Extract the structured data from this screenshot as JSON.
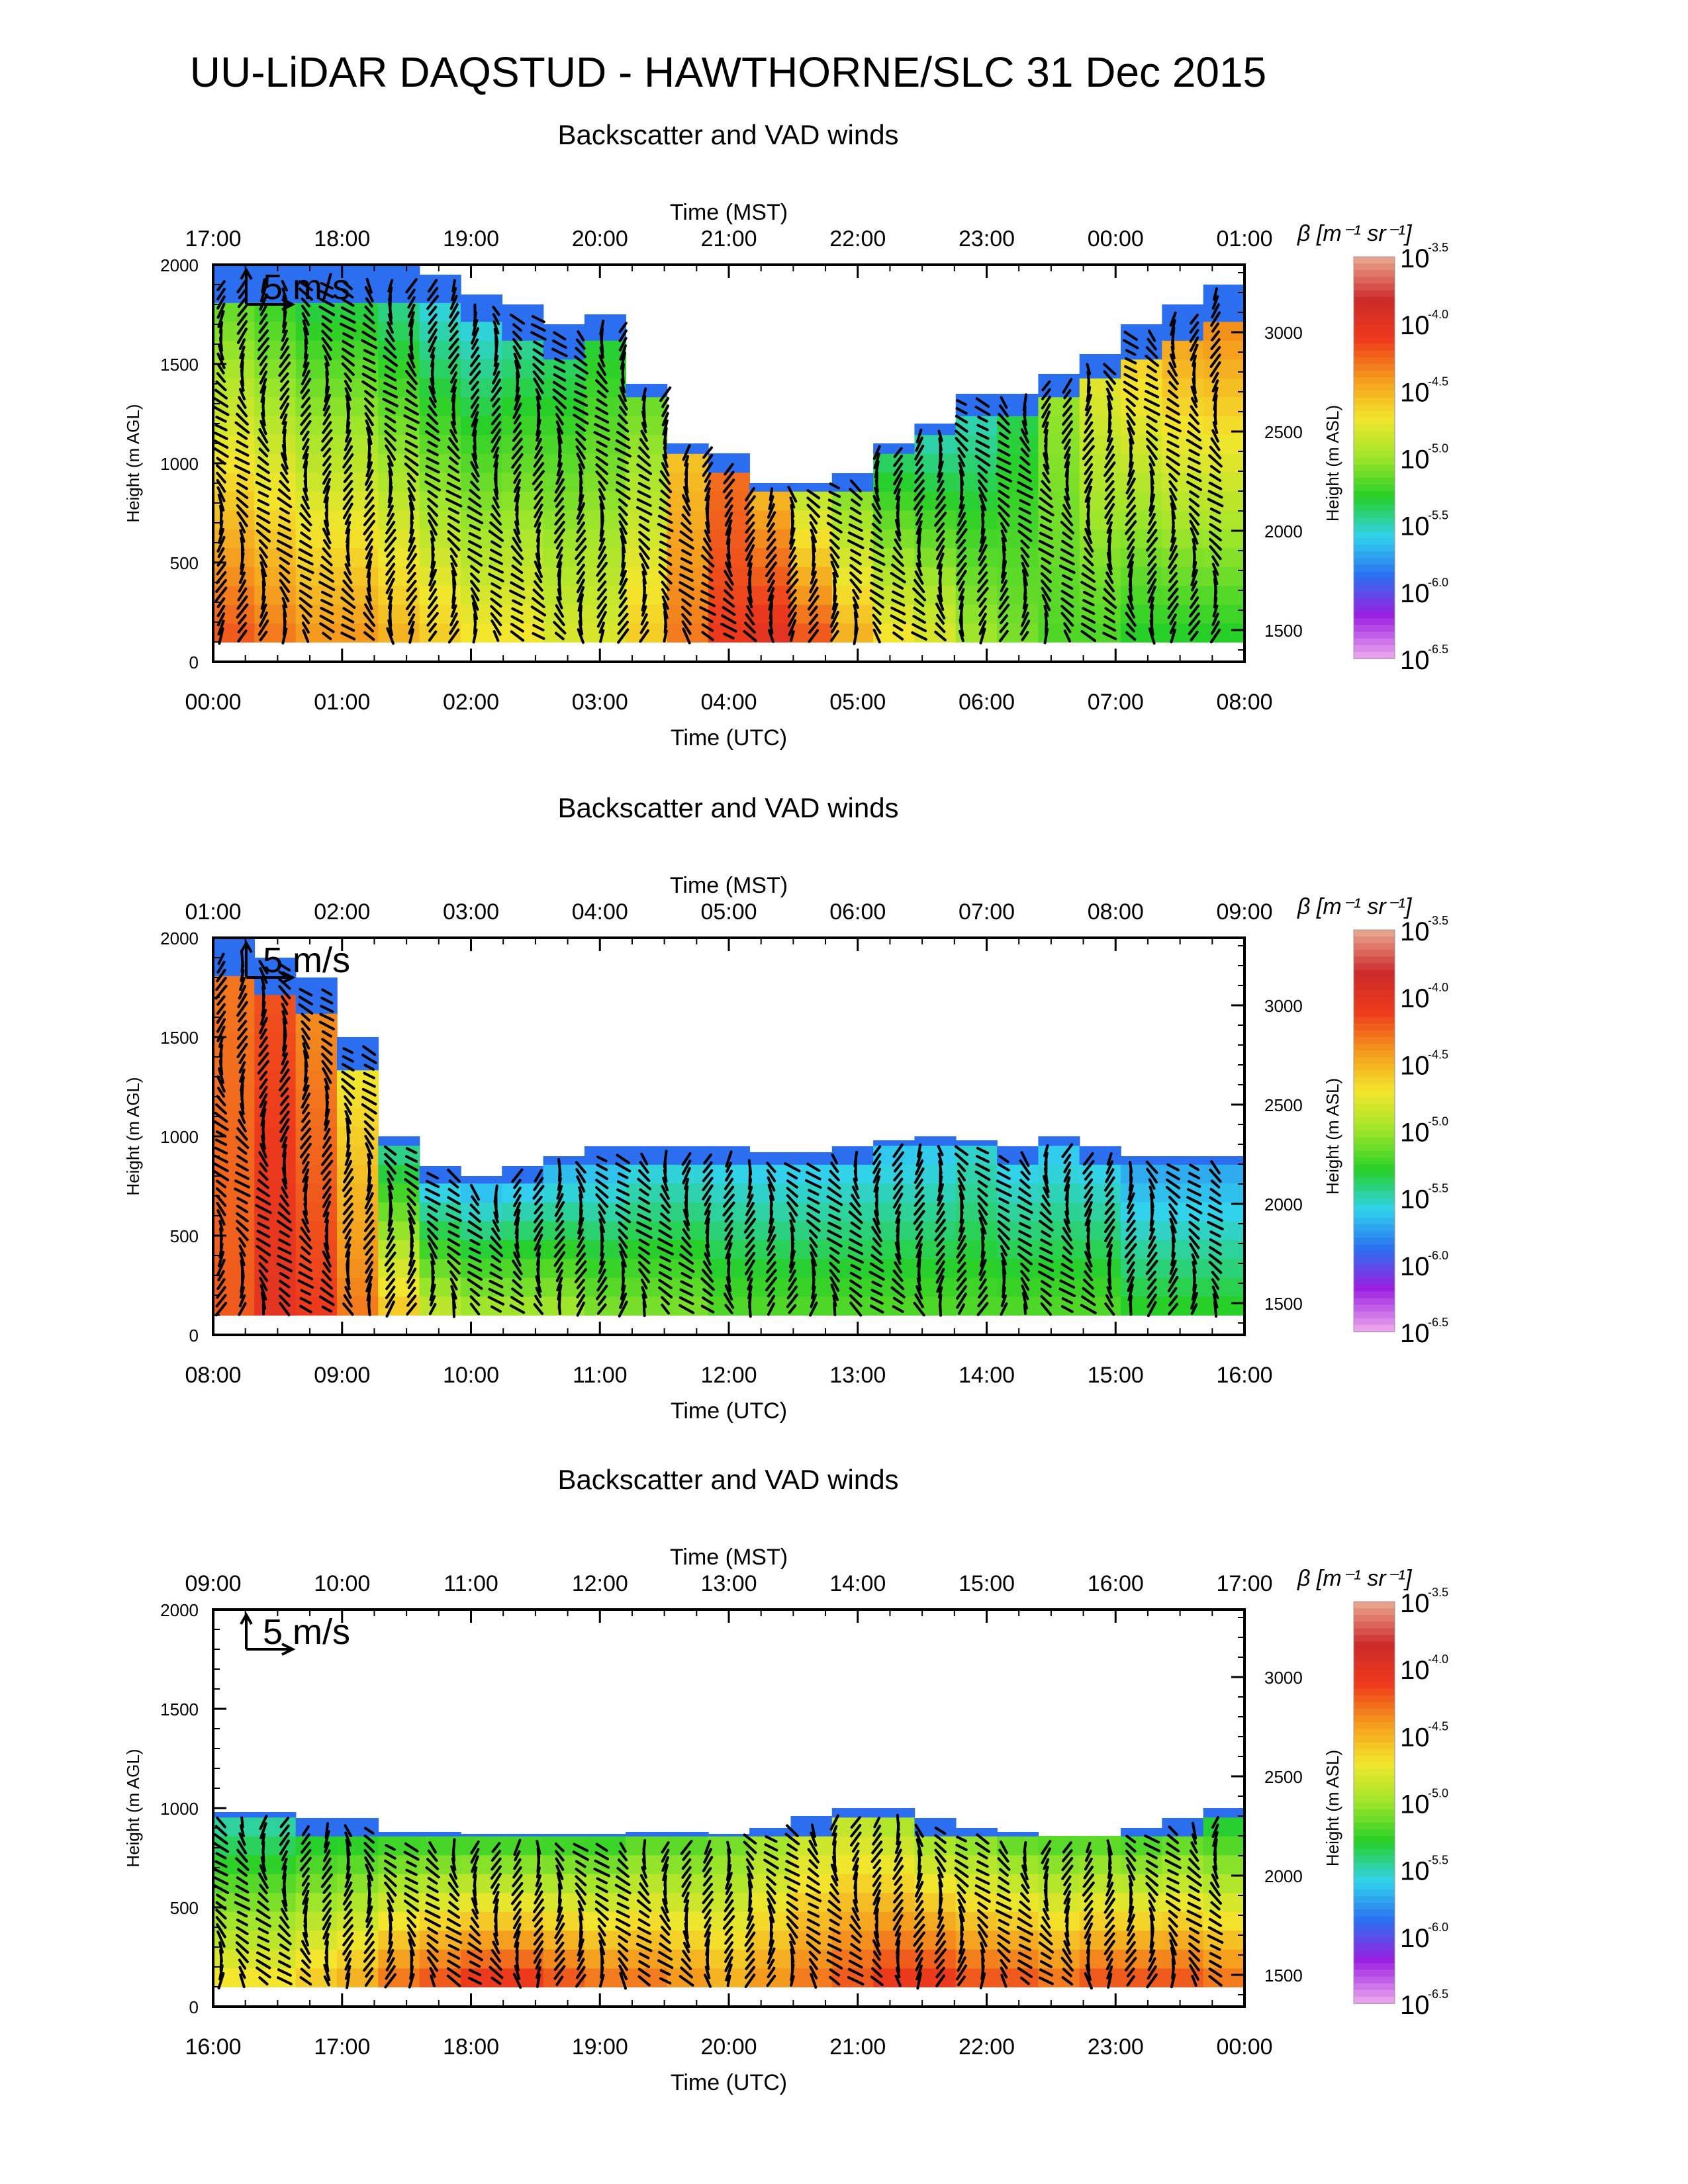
{
  "title": "UU-LiDAR DAQSTUD - HAWTHORNE/SLC 31 Dec 2015",
  "colors": {
    "colormap": [
      "#e9a0ee",
      "#9b1fe0",
      "#2b6ff0",
      "#31d3ee",
      "#27d027",
      "#9fe62a",
      "#f4e62c",
      "#f59a1d",
      "#ee3a1c",
      "#cc2a2a",
      "#e8a08a"
    ]
  },
  "chart_data": [
    {
      "type": "heatmap",
      "title": "Backscatter and VAD winds",
      "top_axis_label": "Time (MST)",
      "top_ticks": [
        "17:00",
        "18:00",
        "19:00",
        "20:00",
        "21:00",
        "22:00",
        "23:00",
        "00:00",
        "01:00"
      ],
      "xlabel": "Time (UTC)",
      "x_ticks": [
        "00:00",
        "01:00",
        "02:00",
        "03:00",
        "04:00",
        "05:00",
        "06:00",
        "07:00",
        "08:00"
      ],
      "ylabel": "Height (m AGL)",
      "y_ticks": [
        "0",
        "500",
        "1000",
        "1500",
        "2000"
      ],
      "ylim": [
        0,
        2000
      ],
      "y2label": "Height (m ASL)",
      "y2_ticks": [
        "1500",
        "2000",
        "2500",
        "3000"
      ],
      "y2_values": [
        1500,
        2000,
        2500,
        3000
      ],
      "asl_offset": 1340,
      "wind_scale_label": "5 m/s",
      "colorbar": {
        "label": "β [m⁻¹ sr⁻¹]",
        "ticks": [
          "-3.5",
          "-4.0",
          "-4.5",
          "-5.0",
          "-5.5",
          "-6.0",
          "-6.5"
        ],
        "range_log10": [
          -6.5,
          -3.5
        ]
      },
      "layer_top_m": [
        2000,
        2000,
        2000,
        2000,
        2000,
        1950,
        1850,
        1800,
        1700,
        1750,
        1400,
        1100,
        1050,
        900,
        900,
        950,
        1100,
        1200,
        1350,
        1350,
        1450,
        1550,
        1700,
        1800,
        1900
      ],
      "surface_log_beta": [
        -4.2,
        -4.3,
        -4.4,
        -4.4,
        -4.5,
        -4.6,
        -4.7,
        -4.7,
        -4.8,
        -4.8,
        -4.6,
        -4.3,
        -4.1,
        -4.0,
        -4.2,
        -4.5,
        -4.7,
        -4.8,
        -5.0,
        -5.1,
        -5.2,
        -5.2,
        -5.3,
        -5.3,
        -5.3
      ],
      "upper_log_beta": [
        -5.3,
        -5.4,
        -5.5,
        -5.5,
        -5.6,
        -5.7,
        -5.7,
        -5.6,
        -5.5,
        -5.4,
        -5.2,
        -4.6,
        -4.3,
        -4.6,
        -5.0,
        -5.2,
        -5.5,
        -5.6,
        -5.6,
        -5.4,
        -5.0,
        -4.7,
        -4.5,
        -4.3,
        -4.2
      ]
    },
    {
      "type": "heatmap",
      "title": "Backscatter and VAD winds",
      "top_axis_label": "Time (MST)",
      "top_ticks": [
        "01:00",
        "02:00",
        "03:00",
        "04:00",
        "05:00",
        "06:00",
        "07:00",
        "08:00",
        "09:00"
      ],
      "xlabel": "Time (UTC)",
      "x_ticks": [
        "08:00",
        "09:00",
        "10:00",
        "11:00",
        "12:00",
        "13:00",
        "14:00",
        "15:00",
        "16:00"
      ],
      "ylabel": "Height (m AGL)",
      "y_ticks": [
        "0",
        "500",
        "1000",
        "1500",
        "2000"
      ],
      "ylim": [
        0,
        2000
      ],
      "y2label": "Height (m ASL)",
      "y2_ticks": [
        "1500",
        "2000",
        "2500",
        "3000"
      ],
      "y2_values": [
        1500,
        2000,
        2500,
        3000
      ],
      "asl_offset": 1340,
      "wind_scale_label": "5 m/s",
      "colorbar": {
        "label": "β [m⁻¹ sr⁻¹]",
        "ticks": [
          "-3.5",
          "-4.0",
          "-4.5",
          "-5.0",
          "-5.5",
          "-6.0",
          "-6.5"
        ],
        "range_log10": [
          -6.5,
          -3.5
        ]
      },
      "layer_top_m": [
        2000,
        1900,
        1800,
        1500,
        1000,
        850,
        800,
        850,
        900,
        950,
        950,
        950,
        950,
        920,
        920,
        950,
        980,
        1000,
        980,
        950,
        1000,
        950,
        900,
        900,
        900
      ],
      "surface_log_beta": [
        -4.2,
        -4.0,
        -4.1,
        -4.3,
        -4.6,
        -4.9,
        -5.0,
        -5.0,
        -5.0,
        -5.1,
        -5.1,
        -5.1,
        -5.2,
        -5.2,
        -5.2,
        -5.2,
        -5.2,
        -5.2,
        -5.2,
        -5.2,
        -5.2,
        -5.2,
        -5.3,
        -5.3,
        -5.3
      ],
      "upper_log_beta": [
        -4.3,
        -4.2,
        -4.4,
        -4.8,
        -5.6,
        -5.8,
        -5.8,
        -5.8,
        -5.8,
        -5.8,
        -5.7,
        -5.7,
        -5.7,
        -5.7,
        -5.7,
        -5.7,
        -5.7,
        -5.7,
        -5.6,
        -5.7,
        -5.7,
        -5.7,
        -5.8,
        -5.8,
        -5.8
      ]
    },
    {
      "type": "heatmap",
      "title": "Backscatter and VAD winds",
      "top_axis_label": "Time (MST)",
      "top_ticks": [
        "09:00",
        "10:00",
        "11:00",
        "12:00",
        "13:00",
        "14:00",
        "15:00",
        "16:00",
        "17:00"
      ],
      "xlabel": "Time (UTC)",
      "x_ticks": [
        "16:00",
        "17:00",
        "18:00",
        "19:00",
        "20:00",
        "21:00",
        "22:00",
        "23:00",
        "00:00"
      ],
      "ylabel": "Height (m AGL)",
      "y_ticks": [
        "0",
        "500",
        "1000",
        "1500",
        "2000"
      ],
      "ylim": [
        0,
        2000
      ],
      "y2label": "Height (m ASL)",
      "y2_ticks": [
        "1500",
        "2000",
        "2500",
        "3000"
      ],
      "y2_values": [
        1500,
        2000,
        2500,
        3000
      ],
      "asl_offset": 1340,
      "wind_scale_label": "5 m/s",
      "colorbar": {
        "label": "β [m⁻¹ sr⁻¹]",
        "ticks": [
          "-3.5",
          "-4.0",
          "-4.5",
          "-5.0",
          "-5.5",
          "-6.0",
          "-6.5"
        ],
        "range_log10": [
          -6.5,
          -3.5
        ]
      },
      "layer_top_m": [
        980,
        980,
        950,
        950,
        880,
        880,
        870,
        870,
        870,
        870,
        880,
        880,
        870,
        900,
        960,
        1000,
        1000,
        950,
        900,
        880,
        860,
        860,
        900,
        950,
        1000
      ],
      "surface_log_beta": [
        -4.7,
        -4.7,
        -4.6,
        -4.5,
        -4.3,
        -4.2,
        -4.1,
        -4.1,
        -4.2,
        -4.3,
        -4.3,
        -4.4,
        -4.5,
        -4.4,
        -4.3,
        -4.2,
        -4.1,
        -4.1,
        -4.2,
        -4.2,
        -4.3,
        -4.2,
        -4.2,
        -4.2,
        -4.3
      ],
      "upper_log_beta": [
        -5.6,
        -5.6,
        -5.5,
        -5.5,
        -5.4,
        -5.4,
        -5.4,
        -5.4,
        -5.4,
        -5.4,
        -5.3,
        -5.3,
        -5.2,
        -5.1,
        -5.0,
        -5.0,
        -5.1,
        -5.2,
        -5.2,
        -5.3,
        -5.3,
        -5.3,
        -5.4,
        -5.4,
        -5.5
      ]
    }
  ]
}
